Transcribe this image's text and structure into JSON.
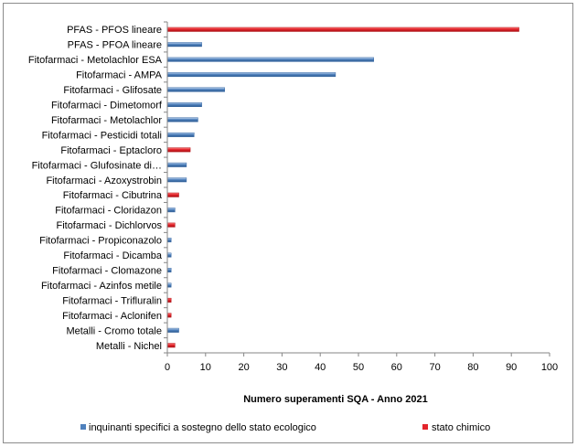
{
  "chart_data": {
    "type": "bar",
    "orientation": "horizontal",
    "xlabel": "Numero superamenti SQA - Anno 2021",
    "xlim": [
      0,
      100
    ],
    "x_ticks": [
      0,
      10,
      20,
      30,
      40,
      50,
      60,
      70,
      80,
      90,
      100
    ],
    "grid": false,
    "legend_position": "bottom",
    "series": [
      {
        "name": "inquinanti specifici a sostegno dello stato ecologico",
        "color": "#4f81bd"
      },
      {
        "name": "stato chimico",
        "color": "#e3242b"
      }
    ],
    "bars": [
      {
        "category": "PFAS - PFOS lineare",
        "series": 1,
        "value": 92
      },
      {
        "category": "PFAS - PFOA lineare",
        "series": 0,
        "value": 9
      },
      {
        "category": "Fitofarmaci - Metolachlor ESA",
        "series": 0,
        "value": 54
      },
      {
        "category": "Fitofarmaci - AMPA",
        "series": 0,
        "value": 44
      },
      {
        "category": "Fitofarmaci - Glifosate",
        "series": 0,
        "value": 15
      },
      {
        "category": "Fitofarmaci - Dimetomorf",
        "series": 0,
        "value": 9
      },
      {
        "category": "Fitofarmaci - Metolachlor",
        "series": 0,
        "value": 8
      },
      {
        "category": "Fitofarmaci - Pesticidi totali",
        "series": 0,
        "value": 7
      },
      {
        "category": "Fitofarmaci - Eptacloro",
        "series": 1,
        "value": 6
      },
      {
        "category": "Fitofarmaci - Glufosinate di…",
        "series": 0,
        "value": 5
      },
      {
        "category": "Fitofarmaci - Azoxystrobin",
        "series": 0,
        "value": 5
      },
      {
        "category": "Fitofarmaci - Cibutrina",
        "series": 1,
        "value": 3
      },
      {
        "category": "Fitofarmaci - Cloridazon",
        "series": 0,
        "value": 2
      },
      {
        "category": "Fitofarmaci - Dichlorvos",
        "series": 1,
        "value": 2
      },
      {
        "category": "Fitofarmaci - Propiconazolo",
        "series": 0,
        "value": 1
      },
      {
        "category": "Fitofarmaci - Dicamba",
        "series": 0,
        "value": 1
      },
      {
        "category": "Fitofarmaci - Clomazone",
        "series": 0,
        "value": 1
      },
      {
        "category": "Fitofarmaci - Azinfos metile",
        "series": 0,
        "value": 1
      },
      {
        "category": "Fitofarmaci - Trifluralin",
        "series": 1,
        "value": 1
      },
      {
        "category": "Fitofarmaci - Aclonifen",
        "series": 1,
        "value": 1
      },
      {
        "category": "Metalli - Cromo totale",
        "series": 0,
        "value": 3
      },
      {
        "category": "Metalli - Nichel",
        "series": 1,
        "value": 2
      }
    ]
  }
}
